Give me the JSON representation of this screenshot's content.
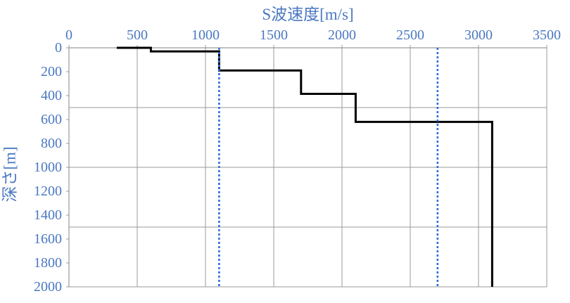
{
  "chart_data": {
    "type": "line",
    "xlabel": "S波速度[m/s]",
    "ylabel": "深さ[m]",
    "xlim": [
      0,
      3500
    ],
    "ylim": [
      0,
      2000
    ],
    "y_reversed": true,
    "x_axis_position": "top",
    "x_ticks": [
      0,
      500,
      1000,
      1500,
      2000,
      2500,
      3000,
      3500
    ],
    "y_ticks": [
      0,
      200,
      400,
      600,
      800,
      1000,
      1200,
      1400,
      1600,
      1800,
      2000
    ],
    "vertical_gridlines_at": [
      500,
      1000,
      1500,
      2000,
      2500,
      3000,
      3500
    ],
    "horizontal_gridlines_at": [
      500,
      1000,
      1500,
      2000
    ],
    "series": [
      {
        "style": "solid",
        "color": "#000000",
        "points": [
          [
            350,
            0
          ],
          [
            600,
            0
          ],
          [
            600,
            30
          ],
          [
            1100,
            30
          ],
          [
            1100,
            190
          ],
          [
            1700,
            190
          ],
          [
            1700,
            385
          ],
          [
            2100,
            385
          ],
          [
            2100,
            620
          ],
          [
            3100,
            620
          ],
          [
            3100,
            2000
          ]
        ]
      },
      {
        "style": "dotted",
        "color": "#2f6fd6",
        "points": [
          [
            1100,
            0
          ],
          [
            1100,
            2000
          ]
        ]
      },
      {
        "style": "dotted",
        "color": "#2f6fd6",
        "points": [
          [
            2700,
            0
          ],
          [
            2700,
            2000
          ]
        ]
      }
    ]
  }
}
